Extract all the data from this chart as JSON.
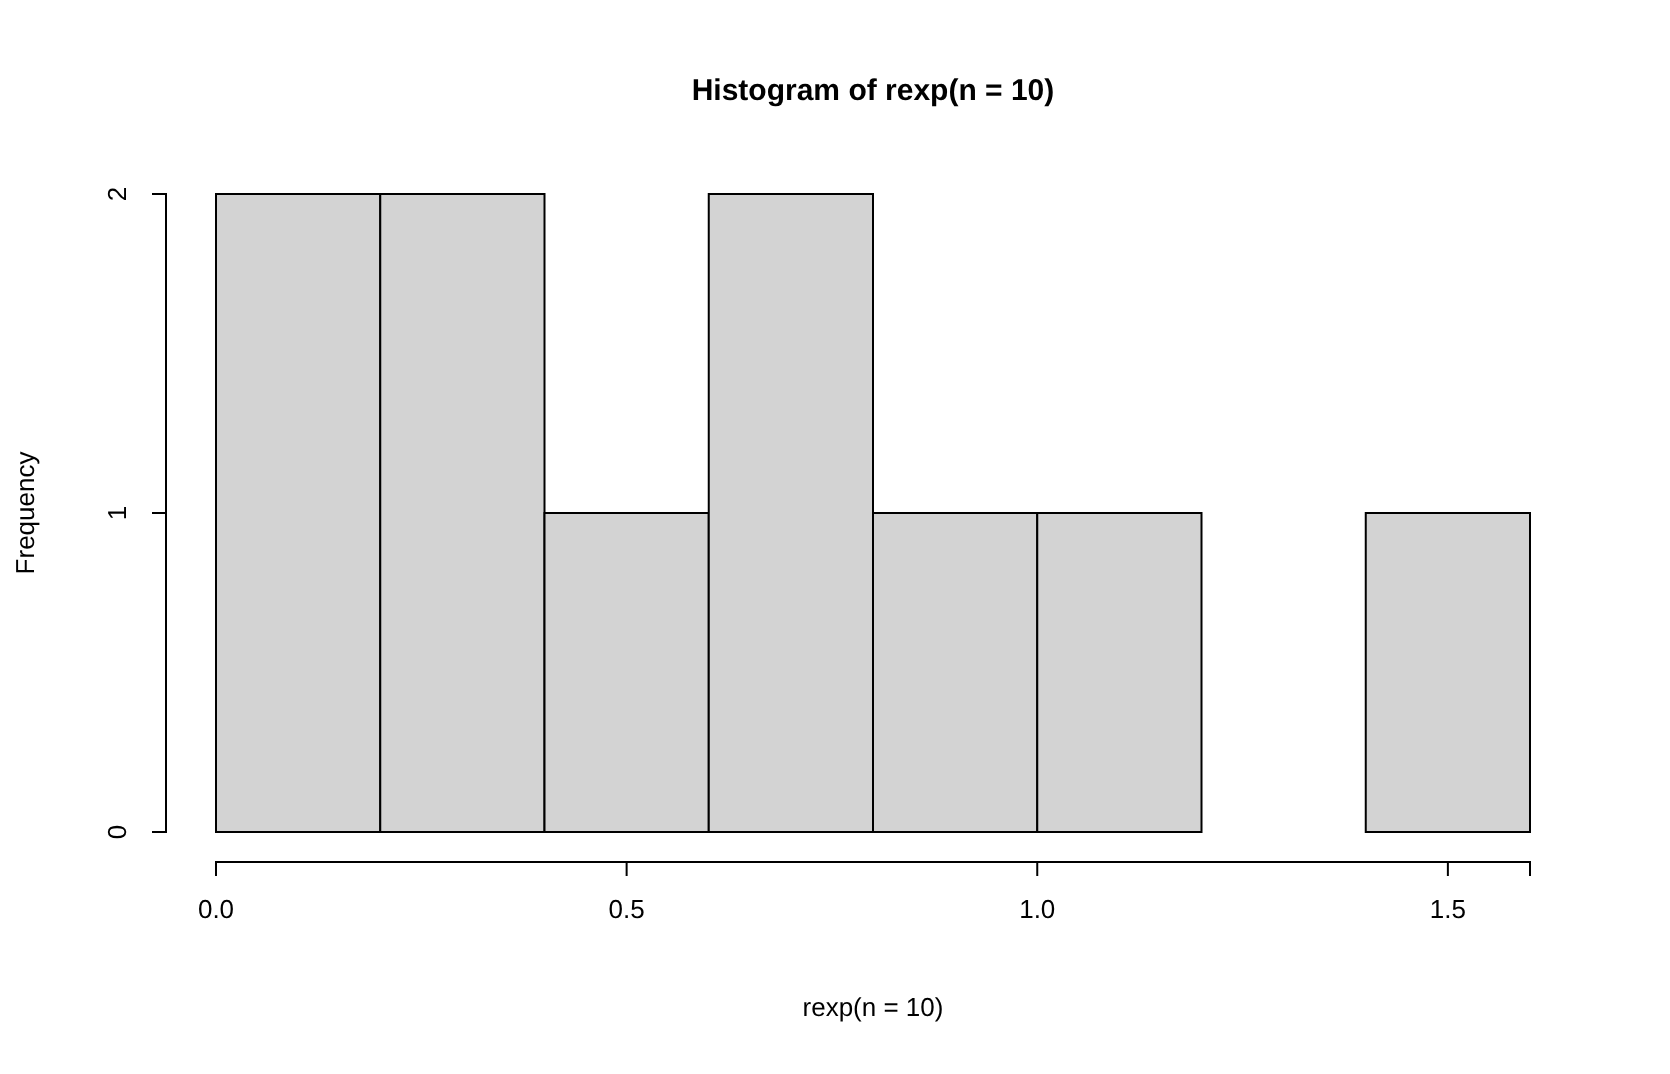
{
  "chart_data": {
    "type": "histogram",
    "title": "Histogram of rexp(n = 10)",
    "xlabel": "rexp(n = 10)",
    "ylabel": "Frequency",
    "bins": [
      0,
      0.2,
      0.4,
      0.6,
      0.8,
      1.0,
      1.2,
      1.4,
      1.6
    ],
    "values": [
      2,
      2,
      1,
      2,
      1,
      1,
      0,
      1
    ],
    "color": "#d3d3d3",
    "xlim": [
      0,
      1.6
    ],
    "xticks": [
      {
        "value": 0,
        "label": "0.0"
      },
      {
        "value": 0.5,
        "label": "0.5"
      },
      {
        "value": 1,
        "label": "1.0"
      },
      {
        "value": 1.5,
        "label": "1.5"
      }
    ],
    "ylim": [
      0,
      2
    ],
    "yticks": [
      0,
      1,
      2
    ]
  }
}
